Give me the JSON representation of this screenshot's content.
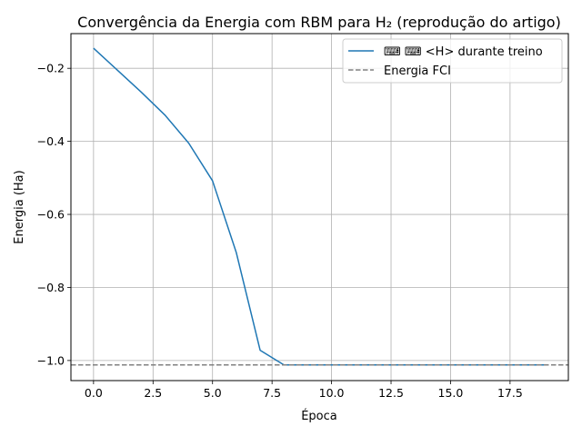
{
  "chart_data": {
    "type": "line",
    "title": "Convergência da Energia com RBM para H₂ (reprodução do artigo)",
    "xlabel": "Época",
    "ylabel": "Energia (Ha)",
    "xlim": [
      -0.95,
      19.95
    ],
    "ylim": [
      -1.055,
      -0.105
    ],
    "xticks": [
      0.0,
      2.5,
      5.0,
      7.5,
      10.0,
      12.5,
      15.0,
      17.5
    ],
    "xtick_labels": [
      "0.0",
      "2.5",
      "5.0",
      "7.5",
      "10.0",
      "12.5",
      "15.0",
      "17.5"
    ],
    "yticks": [
      -0.2,
      -0.4,
      -0.6,
      -0.8,
      -1.0
    ],
    "ytick_labels": [
      "−0.2",
      "−0.4",
      "−0.6",
      "−0.8",
      "−1.0"
    ],
    "grid": true,
    "legend_position": "top-right",
    "series": [
      {
        "name": "⌨ ⌨  <H> durante treino",
        "color": "#1f77b4",
        "style": "solid",
        "x": [
          0,
          1,
          2,
          3,
          4,
          5,
          6,
          7,
          8,
          9,
          10,
          11,
          12,
          13,
          14,
          15,
          16,
          17,
          18,
          19
        ],
        "values": [
          -0.145,
          -0.205,
          -0.265,
          -0.328,
          -0.405,
          -0.508,
          -0.705,
          -0.972,
          -1.012,
          -1.012,
          -1.012,
          -1.012,
          -1.012,
          -1.012,
          -1.012,
          -1.012,
          -1.012,
          -1.012,
          -1.012,
          -1.012
        ]
      },
      {
        "name": "Energia FCI",
        "color": "#808080",
        "style": "dashed",
        "hline": -1.012
      }
    ]
  }
}
